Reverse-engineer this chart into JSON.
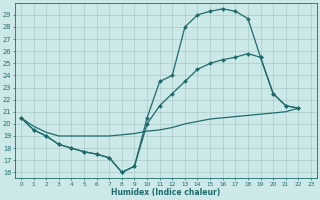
{
  "xlabel": "Humidex (Indice chaleur)",
  "bg_color": "#cce8e8",
  "grid_color": "#aacccc",
  "line_color": "#1f6b6b",
  "xlim": [
    -0.5,
    23.5
  ],
  "ylim": [
    15.5,
    30.0
  ],
  "xticks": [
    0,
    1,
    2,
    3,
    4,
    5,
    6,
    7,
    8,
    9,
    10,
    11,
    12,
    13,
    14,
    15,
    16,
    17,
    18,
    19,
    20,
    21,
    22,
    23
  ],
  "yticks": [
    16,
    17,
    18,
    19,
    20,
    21,
    22,
    23,
    24,
    25,
    26,
    27,
    28,
    29
  ],
  "line1_x": [
    0,
    1,
    2,
    3,
    4,
    5,
    6,
    7,
    8,
    9,
    10,
    11,
    12,
    13,
    14,
    15,
    16,
    17,
    18,
    19,
    20,
    21,
    22
  ],
  "line1_y": [
    20.5,
    19.5,
    19.0,
    18.3,
    18.0,
    17.7,
    17.5,
    17.2,
    16.0,
    16.5,
    20.5,
    23.5,
    24.0,
    28.0,
    29.0,
    29.3,
    29.5,
    29.3,
    28.7,
    25.5,
    22.5,
    21.5,
    21.3
  ],
  "line2_x": [
    0,
    1,
    2,
    3,
    4,
    5,
    6,
    7,
    8,
    9,
    10,
    11,
    12,
    13,
    14,
    15,
    16,
    17,
    18,
    19,
    20,
    21,
    22
  ],
  "line2_y": [
    20.5,
    19.5,
    19.0,
    18.3,
    18.0,
    17.7,
    17.5,
    17.2,
    16.0,
    16.5,
    20.0,
    21.5,
    22.5,
    23.5,
    24.5,
    25.0,
    25.3,
    25.5,
    25.8,
    25.5,
    22.5,
    21.5,
    21.3
  ],
  "line3_x": [
    0,
    1,
    2,
    3,
    4,
    5,
    6,
    7,
    8,
    9,
    10,
    11,
    12,
    13,
    14,
    15,
    16,
    17,
    18,
    19,
    20,
    21,
    22
  ],
  "line3_y": [
    20.5,
    19.8,
    19.3,
    19.0,
    19.0,
    19.0,
    19.0,
    19.0,
    19.1,
    19.2,
    19.4,
    19.5,
    19.7,
    20.0,
    20.2,
    20.4,
    20.5,
    20.6,
    20.7,
    20.8,
    20.9,
    21.0,
    21.3
  ]
}
